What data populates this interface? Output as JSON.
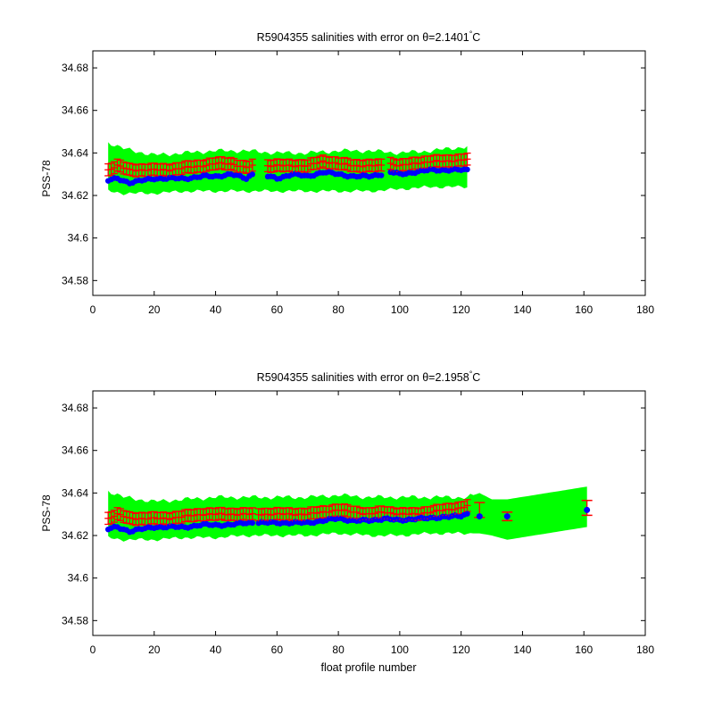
{
  "chart_data": [
    {
      "type": "scatter",
      "title": "R5904355 salinities with error on θ=2.1401",
      "title_superscript": "°",
      "title_unit": "C",
      "xlabel": "",
      "ylabel": "PSS-78",
      "xlim": [
        0,
        180
      ],
      "ylim": [
        34.573,
        34.688
      ],
      "x_ticks": [
        0,
        20,
        40,
        60,
        80,
        100,
        120,
        140,
        160,
        180
      ],
      "y_ticks": [
        34.58,
        34.6,
        34.62,
        34.64,
        34.66,
        34.68
      ],
      "y_tick_labels": [
        "34.58",
        "34.6",
        "34.62",
        "34.64",
        "34.66",
        "34.68"
      ],
      "grid": false,
      "colors": {
        "band": "#00ff00",
        "error": "#ff0000",
        "points": "#0000ff"
      },
      "band_keypoints": {
        "x": [
          5,
          10,
          20,
          30,
          40,
          50,
          60,
          70,
          80,
          90,
          100,
          110,
          122
        ],
        "upper": [
          34.645,
          34.642,
          34.639,
          34.64,
          34.641,
          34.641,
          34.64,
          34.64,
          34.641,
          34.641,
          34.64,
          34.641,
          34.643
        ],
        "lower": [
          34.622,
          34.621,
          34.621,
          34.622,
          34.622,
          34.622,
          34.622,
          34.622,
          34.622,
          34.622,
          34.623,
          34.624,
          34.624
        ]
      },
      "points_keypoints": {
        "x": [
          5,
          8,
          12,
          16,
          20,
          25,
          30,
          36,
          40,
          45,
          50,
          52,
          57,
          60,
          65,
          70,
          75,
          80,
          85,
          90,
          94,
          97,
          100,
          105,
          110,
          115,
          122
        ],
        "y": [
          34.627,
          34.628,
          34.626,
          34.627,
          34.628,
          34.628,
          34.628,
          34.629,
          34.629,
          34.63,
          34.628,
          34.63,
          34.629,
          34.628,
          34.63,
          34.629,
          34.631,
          34.63,
          34.629,
          34.629,
          34.63,
          34.631,
          34.63,
          34.631,
          34.632,
          34.632,
          34.632
        ]
      },
      "error_keypoints": {
        "x": [
          5,
          8,
          12,
          16,
          20,
          25,
          30,
          36,
          40,
          45,
          50,
          52,
          57,
          60,
          65,
          70,
          75,
          80,
          85,
          90,
          94,
          97,
          100,
          105,
          110,
          115,
          122
        ],
        "y": [
          34.632,
          34.634,
          34.632,
          34.632,
          34.632,
          34.632,
          34.633,
          34.634,
          34.635,
          34.635,
          34.633,
          34.634,
          34.634,
          34.634,
          34.634,
          34.634,
          34.636,
          34.635,
          34.634,
          34.634,
          34.634,
          34.635,
          34.634,
          34.635,
          34.636,
          34.636,
          34.637
        ],
        "err": 0.0028
      },
      "profile_gaps": [
        53,
        54,
        55,
        56,
        95,
        96
      ]
    },
    {
      "type": "scatter",
      "title": "R5904355 salinities with error on θ=2.1958",
      "title_superscript": "°",
      "title_unit": "C",
      "xlabel": "float profile number",
      "ylabel": "PSS-78",
      "xlim": [
        0,
        180
      ],
      "ylim": [
        34.573,
        34.688
      ],
      "x_ticks": [
        0,
        20,
        40,
        60,
        80,
        100,
        120,
        140,
        160,
        180
      ],
      "y_ticks": [
        34.58,
        34.6,
        34.62,
        34.64,
        34.66,
        34.68
      ],
      "y_tick_labels": [
        "34.58",
        "34.6",
        "34.62",
        "34.64",
        "34.66",
        "34.68"
      ],
      "grid": false,
      "colors": {
        "band": "#00ff00",
        "error": "#ff0000",
        "points": "#0000ff"
      },
      "band_keypoints": {
        "x": [
          5,
          10,
          20,
          30,
          40,
          50,
          60,
          70,
          80,
          90,
          100,
          110,
          120,
          122,
          126,
          130,
          135,
          161
        ],
        "upper": [
          34.641,
          34.638,
          34.636,
          34.637,
          34.638,
          34.638,
          34.638,
          34.638,
          34.639,
          34.638,
          34.638,
          34.638,
          34.638,
          34.638,
          34.64,
          34.637,
          34.637,
          34.643
        ],
        "lower": [
          34.619,
          34.618,
          34.618,
          34.619,
          34.619,
          34.62,
          34.62,
          34.62,
          34.621,
          34.62,
          34.62,
          34.621,
          34.621,
          34.621,
          34.621,
          34.62,
          34.618,
          34.624
        ]
      },
      "points_keypoints": {
        "x": [
          5,
          8,
          12,
          16,
          20,
          25,
          30,
          36,
          40,
          45,
          50,
          55,
          60,
          65,
          70,
          75,
          80,
          85,
          90,
          95,
          100,
          105,
          110,
          115,
          120,
          122
        ],
        "y": [
          34.623,
          34.624,
          34.622,
          34.623,
          34.624,
          34.624,
          34.624,
          34.625,
          34.625,
          34.625,
          34.626,
          34.626,
          34.626,
          34.626,
          34.626,
          34.627,
          34.628,
          34.627,
          34.627,
          34.628,
          34.627,
          34.628,
          34.628,
          34.629,
          34.629,
          34.63
        ]
      },
      "error_keypoints": {
        "x": [
          5,
          8,
          12,
          16,
          20,
          25,
          30,
          36,
          40,
          45,
          50,
          55,
          60,
          65,
          70,
          75,
          80,
          85,
          90,
          95,
          100,
          105,
          110,
          115,
          120,
          122
        ],
        "y": [
          34.628,
          34.63,
          34.628,
          34.628,
          34.628,
          34.628,
          34.629,
          34.63,
          34.63,
          34.63,
          34.63,
          34.63,
          34.63,
          34.63,
          34.63,
          34.631,
          34.632,
          34.631,
          34.63,
          34.631,
          34.63,
          34.63,
          34.631,
          34.632,
          34.633,
          34.634
        ],
        "err": 0.0028
      },
      "extra_points": [
        {
          "x": 126,
          "y": 34.629,
          "err_y": 34.632,
          "err": 0.0035
        },
        {
          "x": 135,
          "y": 34.629,
          "err_y": 34.629,
          "err": 0.002
        },
        {
          "x": 161,
          "y": 34.632,
          "err_y": 34.633,
          "err": 0.0035
        }
      ],
      "profile_gaps": [
        53
      ]
    }
  ]
}
